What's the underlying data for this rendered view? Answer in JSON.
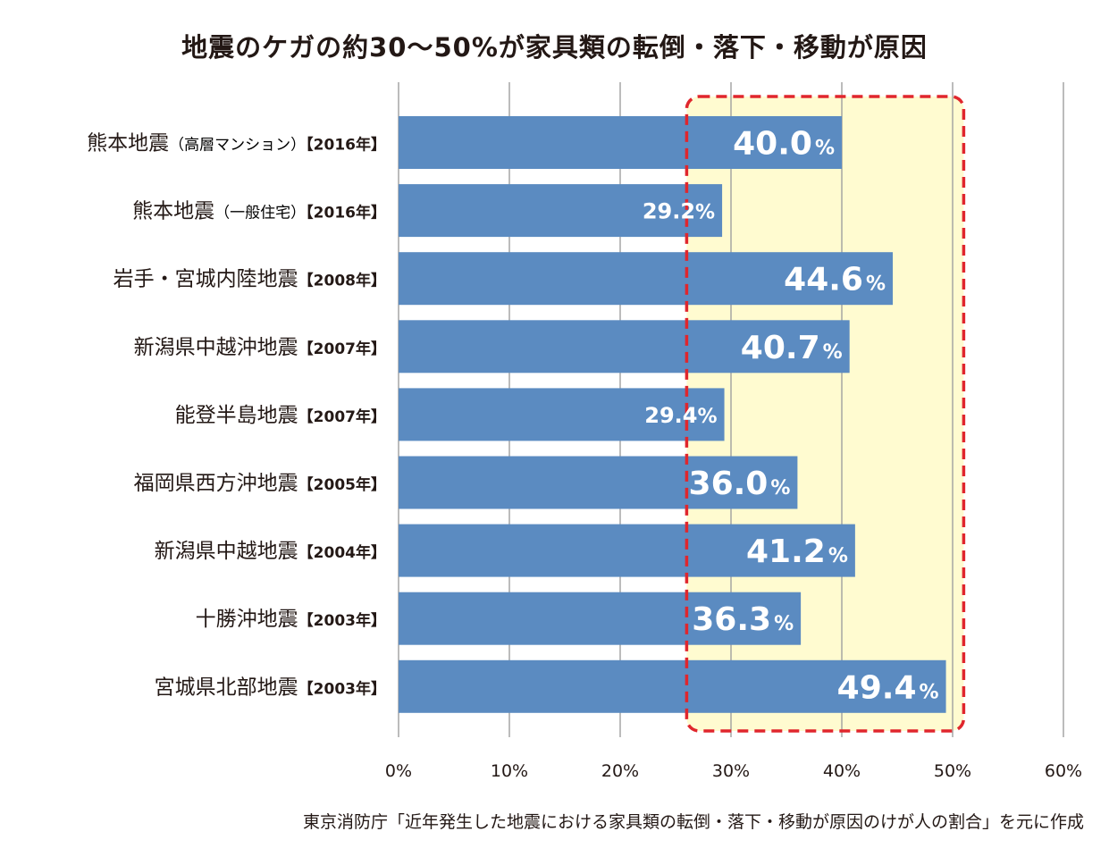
{
  "title": "地震のケガの約30〜50%が家具類の転倒・落下・移動が原因",
  "source": "東京消防庁「近年発生した地震における家具類の転倒・落下・移動が原因のけが人の割合」を元に作成",
  "colors": {
    "bar": "#5B8BC1",
    "highlight_fill": "#FFFBD0",
    "highlight_border": "#E0262D",
    "grid": "#A0A0A0",
    "text": "#231815"
  },
  "chart_data": {
    "type": "bar",
    "orientation": "horizontal",
    "title": "地震のケガの約30〜50%が家具類の転倒・落下・移動が原因",
    "categories": [
      {
        "name": "熊本地震",
        "note": "（高層マンション）",
        "year": "【2016年】"
      },
      {
        "name": "熊本地震",
        "note": "（一般住宅）",
        "year": "【2016年】"
      },
      {
        "name": "岩手・宮城内陸地震",
        "note": "",
        "year": "【2008年】"
      },
      {
        "name": "新潟県中越沖地震",
        "note": "",
        "year": "【2007年】"
      },
      {
        "name": "能登半島地震",
        "note": "",
        "year": "【2007年】"
      },
      {
        "name": "福岡県西方沖地震",
        "note": "",
        "year": "【2005年】"
      },
      {
        "name": "新潟県中越地震",
        "note": "",
        "year": "【2004年】"
      },
      {
        "name": "十勝沖地震",
        "note": "",
        "year": "【2003年】"
      },
      {
        "name": "宮城県北部地震",
        "note": "",
        "year": "【2003年】"
      }
    ],
    "values": [
      40.0,
      29.2,
      44.6,
      40.7,
      29.4,
      36.0,
      41.2,
      36.3,
      49.4
    ],
    "value_labels": [
      "40.0",
      "29.2",
      "44.6",
      "40.7",
      "29.4",
      "36.0",
      "41.2",
      "36.3",
      "49.4"
    ],
    "value_unit": "%",
    "xlim": [
      0,
      60
    ],
    "xticks": [
      0,
      10,
      20,
      30,
      40,
      50,
      60
    ],
    "xtick_labels": [
      "0%",
      "10%",
      "20%",
      "30%",
      "40%",
      "50%",
      "60%"
    ],
    "highlight_range": [
      26,
      51
    ],
    "grid": true,
    "legend": "none"
  }
}
